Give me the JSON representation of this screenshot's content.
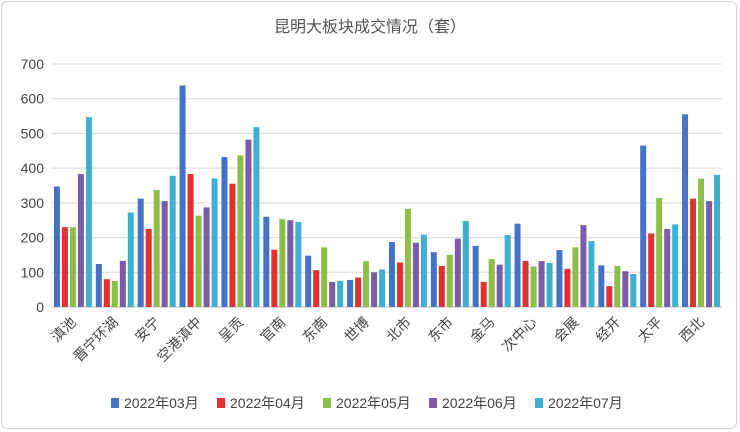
{
  "chart_data": {
    "type": "bar",
    "title": "昆明大板块成交情况（套）",
    "categories": [
      "滇池",
      "晋宁环湖",
      "安宁",
      "空港滇中",
      "呈贡",
      "官南",
      "东南",
      "世博",
      "北市",
      "东市",
      "金马",
      "次中心",
      "会展",
      "经开",
      "太平",
      "西北"
    ],
    "series": [
      {
        "name": "2022年03月",
        "color": "#4472C4",
        "values": [
          347,
          124,
          312,
          638,
          432,
          260,
          148,
          78,
          187,
          158,
          176,
          240,
          164,
          120,
          465,
          555
        ]
      },
      {
        "name": "2022年04月",
        "color": "#E0312E",
        "values": [
          230,
          80,
          225,
          383,
          355,
          165,
          106,
          85,
          128,
          118,
          72,
          133,
          110,
          60,
          212,
          312
        ]
      },
      {
        "name": "2022年05月",
        "color": "#8CBE4A",
        "values": [
          230,
          75,
          337,
          263,
          437,
          253,
          172,
          132,
          283,
          150,
          138,
          117,
          172,
          118,
          314,
          370
        ]
      },
      {
        "name": "2022年06月",
        "color": "#7A5CA8",
        "values": [
          383,
          133,
          305,
          287,
          482,
          250,
          72,
          100,
          185,
          197,
          122,
          132,
          236,
          103,
          225,
          305
        ]
      },
      {
        "name": "2022年07月",
        "color": "#3DB1CF",
        "values": [
          547,
          272,
          378,
          370,
          518,
          245,
          75,
          108,
          208,
          248,
          207,
          127,
          190,
          95,
          238,
          381
        ]
      }
    ],
    "ylim": [
      0,
      700
    ],
    "yticks": [
      "0",
      "100",
      "200",
      "300",
      "400",
      "500",
      "600",
      "700"
    ],
    "grid": true,
    "legend": "bottom"
  }
}
